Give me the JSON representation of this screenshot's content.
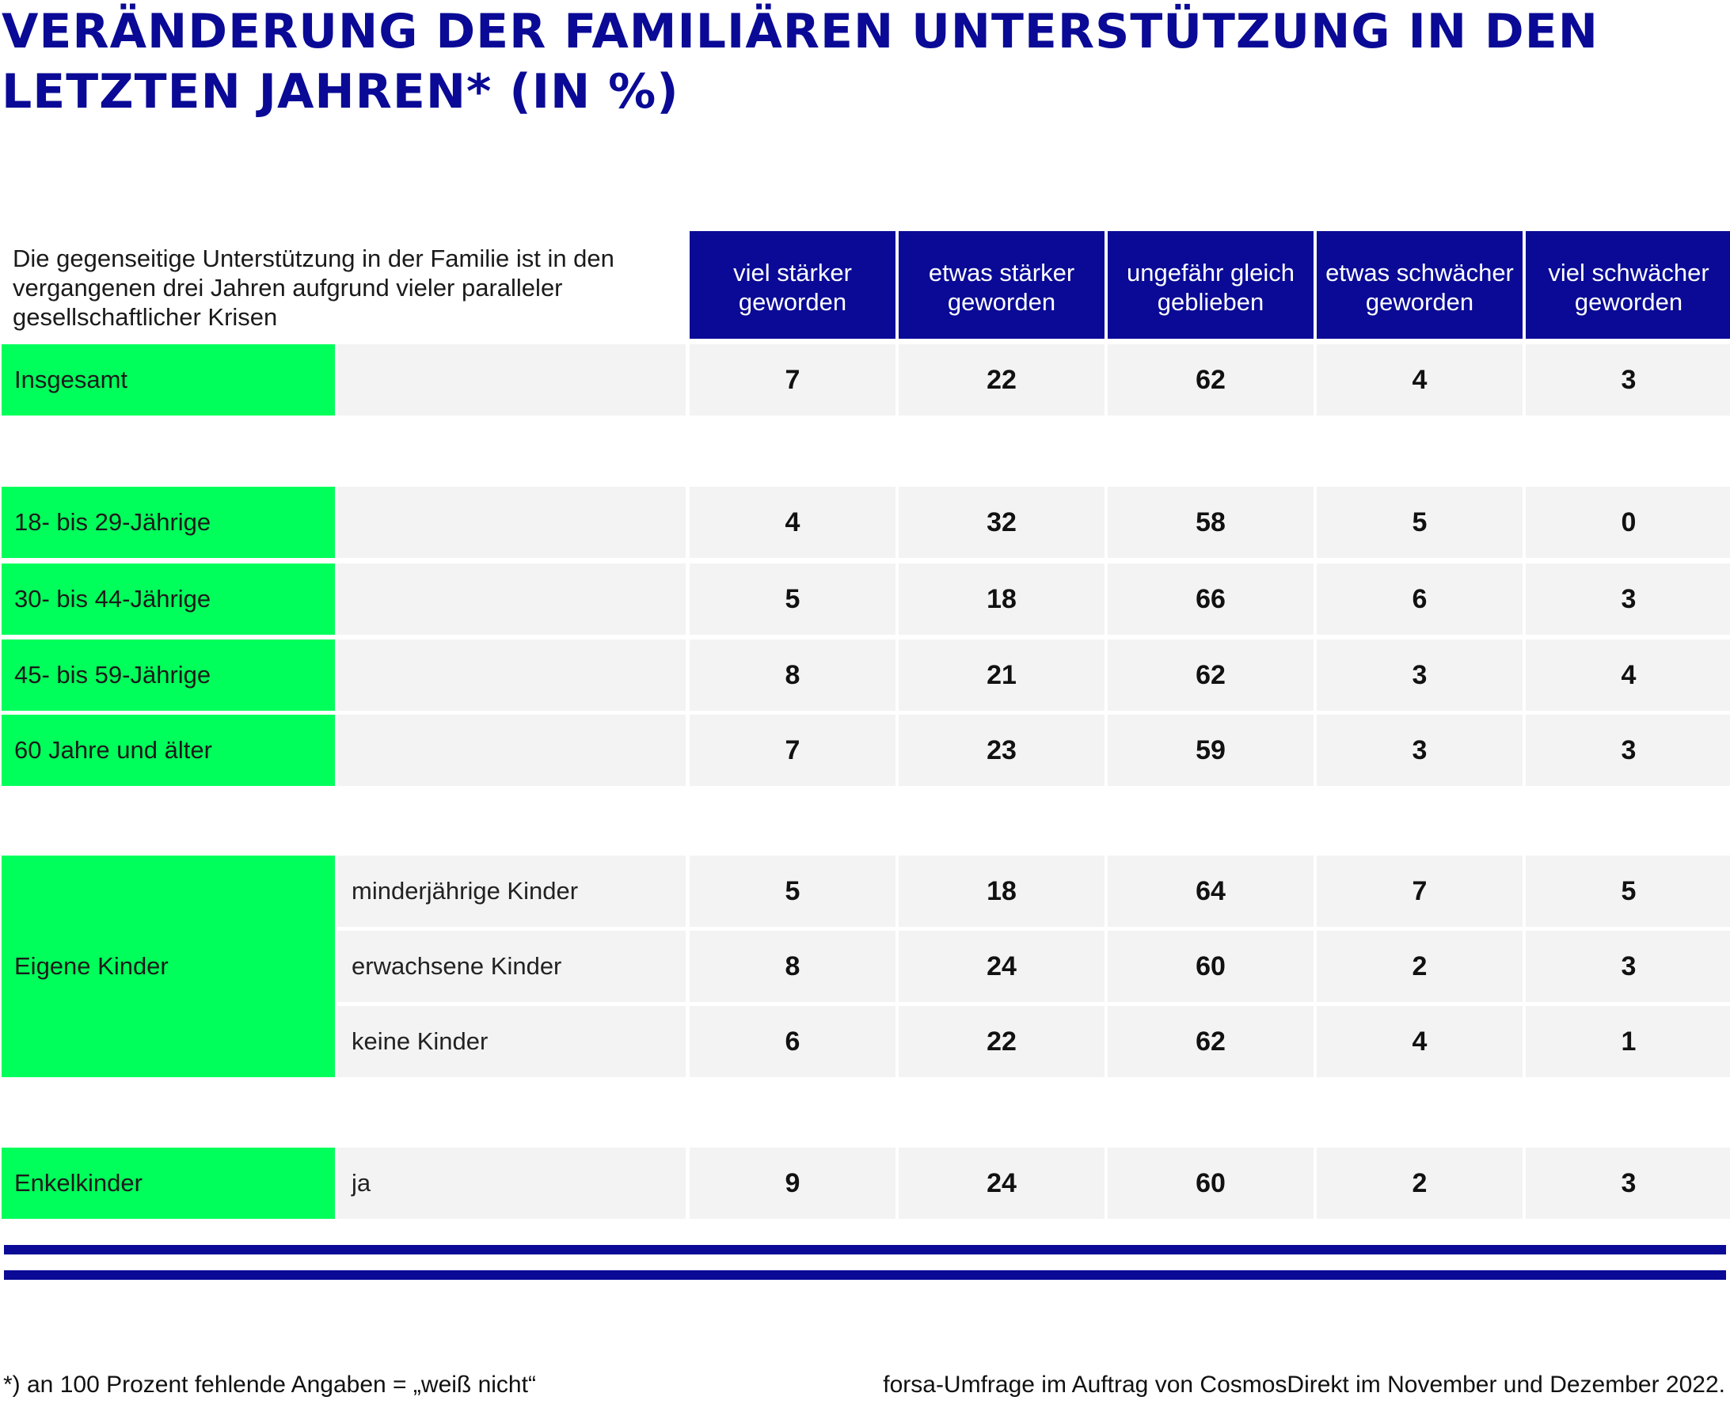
{
  "title": "VERÄNDERUNG DER FAMILIÄREN UNTERSTÜTZUNG IN DEN LETZTEN JAHREN* (IN %)",
  "question": "Die gegenseitige Unterstützung in der Familie ist in den vergangenen drei Jahren aufgrund vieler paralleler gesellschaftlicher Krisen",
  "footnote": "*) an 100 Prozent fehlende Angaben = „weiß nicht“",
  "source": "forsa-Umfrage im Auftrag von CosmosDirekt im November und Dezember 2022.",
  "colors": {
    "header": "#0a0a96",
    "label": "#00ff5a",
    "cell": "#f3f3f3",
    "title": "#0a0a96"
  },
  "chart_data": {
    "type": "table",
    "title": "VERÄNDERUNG DER FAMILIÄREN UNTERSTÜTZUNG IN DEN LETZTEN JAHREN* (IN %)",
    "columns": [
      "viel stärker geworden",
      "etwas stärker geworden",
      "ungefähr gleich geblieben",
      "etwas schwächer geworden",
      "viel schwächer geworden"
    ],
    "groups": [
      {
        "label": "Insgesamt",
        "rows": [
          {
            "sub": "",
            "values": [
              7,
              22,
              62,
              4,
              3
            ]
          }
        ]
      },
      {
        "label": "18- bis 29-Jährige",
        "rows": [
          {
            "sub": "",
            "values": [
              4,
              32,
              58,
              5,
              0
            ]
          }
        ]
      },
      {
        "label": "30- bis 44-Jährige",
        "rows": [
          {
            "sub": "",
            "values": [
              5,
              18,
              66,
              6,
              3
            ]
          }
        ]
      },
      {
        "label": "45- bis 59-Jährige",
        "rows": [
          {
            "sub": "",
            "values": [
              8,
              21,
              62,
              3,
              4
            ]
          }
        ]
      },
      {
        "label": "60 Jahre und älter",
        "rows": [
          {
            "sub": "",
            "values": [
              7,
              23,
              59,
              3,
              3
            ]
          }
        ]
      },
      {
        "label": "Eigene Kinder",
        "rows": [
          {
            "sub": "minderjährige Kinder",
            "values": [
              5,
              18,
              64,
              7,
              5
            ]
          },
          {
            "sub": "erwachsene Kinder",
            "values": [
              8,
              24,
              60,
              2,
              3
            ]
          },
          {
            "sub": "keine Kinder",
            "values": [
              6,
              22,
              62,
              4,
              1
            ]
          }
        ]
      },
      {
        "label": "Enkelkinder",
        "rows": [
          {
            "sub": "ja",
            "values": [
              9,
              24,
              60,
              2,
              3
            ]
          }
        ]
      }
    ]
  }
}
